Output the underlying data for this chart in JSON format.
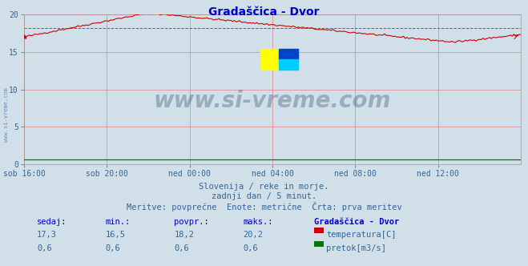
{
  "title": "Gradaščica - Dvor",
  "title_color": "#0000cc",
  "background_color": "#d0dfe8",
  "plot_bg_color": "#d0dfe8",
  "grid_color": "#e08080",
  "grid_alpha": 0.8,
  "ylim": [
    0,
    20
  ],
  "yticks": [
    0,
    5,
    10,
    15,
    20
  ],
  "xtick_labels": [
    "sob 16:00",
    "sob 20:00",
    "ned 00:00",
    "ned 04:00",
    "ned 08:00",
    "ned 12:00"
  ],
  "xtick_positions": [
    0,
    48,
    96,
    144,
    192,
    240
  ],
  "total_points": 289,
  "temp_avg": 18.2,
  "temp_min": 16.5,
  "temp_max": 20.2,
  "temp_current": 17.3,
  "flow_avg": 0.6,
  "flow_min": 0.6,
  "flow_max": 0.6,
  "flow_current": 0.6,
  "temp_line_color": "#cc0000",
  "flow_line_color": "#007700",
  "avg_line_color": "#cc0000",
  "watermark_text": "www.si-vreme.com",
  "watermark_color": "#1a3a6a",
  "watermark_alpha": 0.3,
  "subtitle1": "Slovenija / reke in morje.",
  "subtitle2": "zadnji dan / 5 minut.",
  "subtitle3": "Meritve: povprečne  Enote: metrične  Črta: prva meritev",
  "subtitle_color": "#336699",
  "tick_color": "#336699",
  "table_header_color": "#0000cc",
  "table_value_color": "#336699",
  "station_name": "Gradaščica - Dvor",
  "left_margin_text": "www.si-vreme.com",
  "left_margin_color": "#336699",
  "logo_yellow": "#ffff00",
  "logo_blue": "#0044cc",
  "logo_cyan": "#00ccff"
}
